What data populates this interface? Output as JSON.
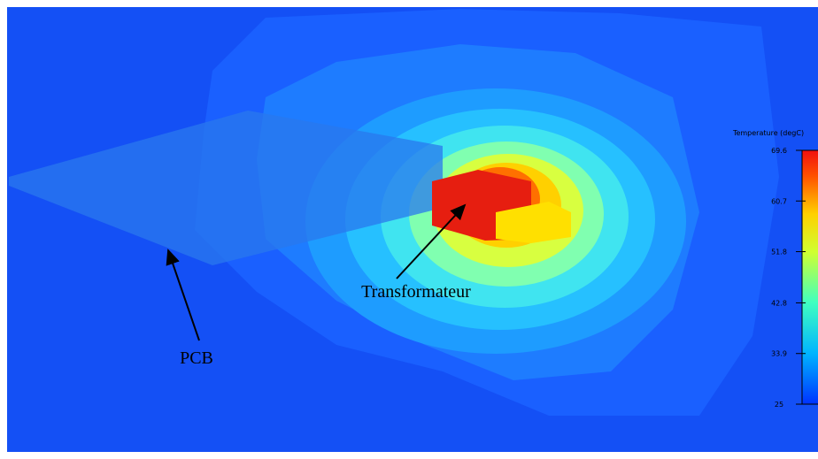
{
  "annotations": {
    "pcb": "PCB",
    "transformer": "Transformateur"
  },
  "colorbar": {
    "title": "Temperature (degC)",
    "range": [
      25,
      69.6
    ],
    "ticks": [
      69.6,
      60.7,
      51.8,
      42.8,
      33.9,
      25
    ]
  }
}
